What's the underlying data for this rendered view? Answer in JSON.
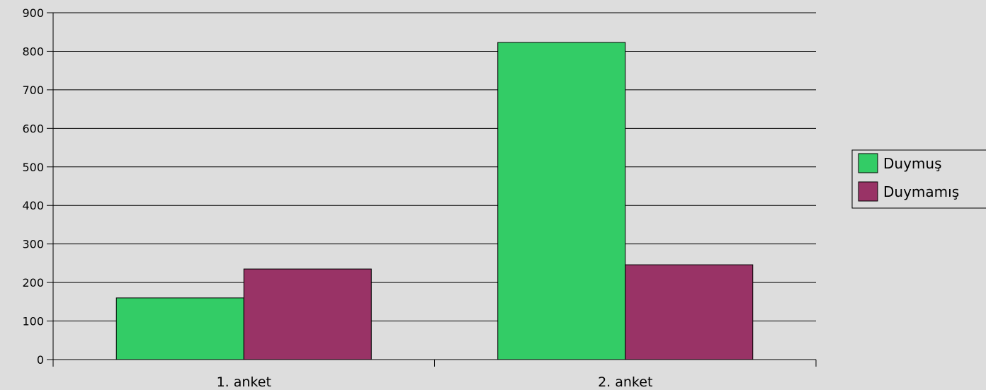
{
  "chart_data": {
    "type": "bar",
    "categories": [
      "1. anket",
      "2. anket"
    ],
    "series": [
      {
        "name": "Duymuş",
        "values": [
          160,
          823
        ],
        "color": "#33cc66"
      },
      {
        "name": "Duymamış",
        "values": [
          235,
          246
        ],
        "color": "#993366"
      }
    ],
    "ylim": [
      0,
      900
    ],
    "yticks": [
      "0",
      "100",
      "200",
      "300",
      "400",
      "500",
      "600",
      "700",
      "800",
      "900"
    ],
    "grid": true,
    "legend_position": "right",
    "background_color": "#dddddd"
  }
}
